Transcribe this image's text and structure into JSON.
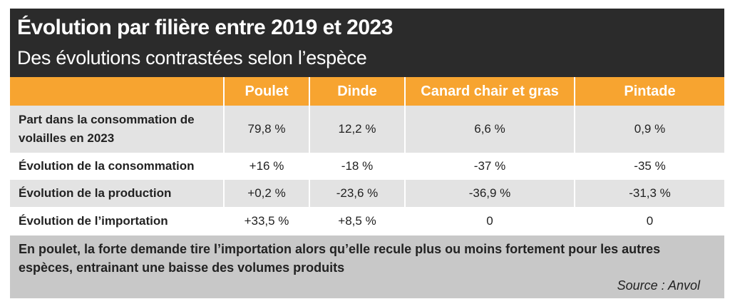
{
  "header": {
    "title": "Évolution par filière entre 2019 et 2023",
    "subtitle": "Des évolutions contrastées selon l’espèce"
  },
  "table": {
    "columns": [
      "",
      "Poulet",
      "Dinde",
      "Canard chair et gras",
      "Pintade"
    ],
    "rows": [
      {
        "label": "Part dans la consommation de volailles en 2023",
        "cells": [
          "79,8 %",
          "12,2 %",
          "6,6 %",
          "0,9 %"
        ]
      },
      {
        "label": "Évolution de la consommation",
        "cells": [
          "+16 %",
          "-18 %",
          "-37 %",
          "-35 %"
        ]
      },
      {
        "label": "Évolution de la production",
        "cells": [
          "+0,2 %",
          "-23,6 %",
          "-36,9 %",
          "-31,3 %"
        ]
      },
      {
        "label": "Évolution de l’importation",
        "cells": [
          "+33,5 %",
          "+8,5 %",
          "0",
          "0"
        ]
      }
    ]
  },
  "footer": {
    "note": "En poulet, la forte demande tire l’importation alors qu’elle recule plus ou moins fortement pour les autres espèces, entrainant une baisse des volumes produits",
    "source": "Source : Anvol"
  },
  "colors": {
    "header_bg": "#2b2b2b",
    "accent": "#f7a430",
    "row_gray": "#e3e3e3",
    "footer_bg": "#c8c8c8"
  }
}
